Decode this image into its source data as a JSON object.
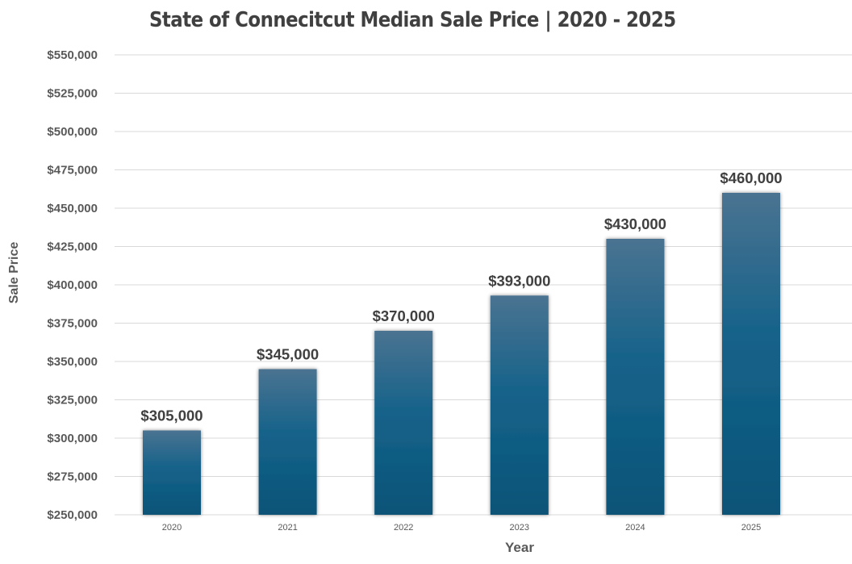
{
  "chart_data": {
    "type": "bar",
    "title": "State of Connecitcut Median Sale Price | 2020 - 2025",
    "xlabel": "Year",
    "ylabel": "Sale Price",
    "categories": [
      "2020",
      "2021",
      "2022",
      "2023",
      "2024",
      "2025"
    ],
    "values": [
      305000,
      345000,
      370000,
      393000,
      430000,
      460000
    ],
    "data_labels": [
      "$305,000",
      "$345,000",
      "$370,000",
      "$393,000",
      "$430,000",
      "$460,000"
    ],
    "ylim": [
      250000,
      550000
    ],
    "ytick_step": 25000,
    "yticks": [
      "$250,000",
      "$275,000",
      "$300,000",
      "$325,000",
      "$350,000",
      "$375,000",
      "$400,000",
      "$425,000",
      "$450,000",
      "$475,000",
      "$500,000",
      "$525,000",
      "$550,000"
    ],
    "grid": true,
    "legend": "none",
    "colors": {
      "bar_top": "#47708F",
      "bar_mid": "#16628A",
      "bar_bottom": "#0B5478",
      "grid": "#D9D9D9",
      "text": "#595959",
      "label": "#404040"
    }
  }
}
